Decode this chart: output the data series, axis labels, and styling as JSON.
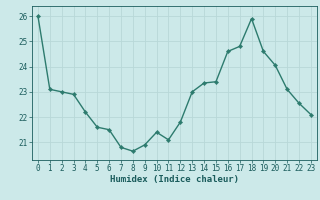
{
  "x": [
    0,
    1,
    2,
    3,
    4,
    5,
    6,
    7,
    8,
    9,
    10,
    11,
    12,
    13,
    14,
    15,
    16,
    17,
    18,
    19,
    20,
    21,
    22,
    23
  ],
  "y": [
    26.0,
    23.1,
    23.0,
    22.9,
    22.2,
    21.6,
    21.5,
    20.8,
    20.65,
    20.9,
    21.4,
    21.1,
    21.8,
    23.0,
    23.35,
    23.4,
    24.6,
    24.8,
    25.9,
    24.6,
    24.05,
    23.1,
    22.55,
    22.1
  ],
  "line_color": "#2d7b6e",
  "marker": "D",
  "marker_size": 2.2,
  "line_width": 1.0,
  "bg_color": "#cce9e9",
  "grid_color": "#b8d8d8",
  "xlabel": "Humidex (Indice chaleur)",
  "xlabel_color": "#1a5c5c",
  "xlabel_fontsize": 6.5,
  "tick_color": "#1a5c5c",
  "tick_fontsize": 5.5,
  "yticks": [
    21,
    22,
    23,
    24,
    25,
    26
  ],
  "ylim": [
    20.3,
    26.4
  ],
  "xlim": [
    -0.5,
    23.5
  ],
  "xticks": [
    0,
    1,
    2,
    3,
    4,
    5,
    6,
    7,
    8,
    9,
    10,
    11,
    12,
    13,
    14,
    15,
    16,
    17,
    18,
    19,
    20,
    21,
    22,
    23
  ]
}
